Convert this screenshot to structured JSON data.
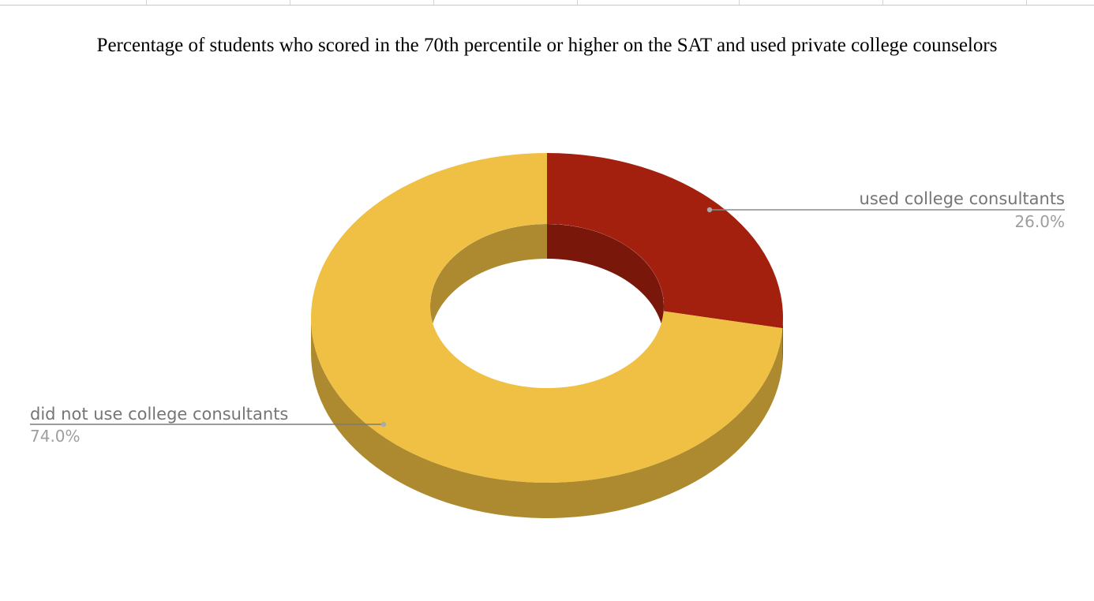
{
  "chart_data": {
    "type": "pie",
    "style": "3d-donut",
    "title": "Percentage of students who scored in the 70th percentile or higher on the SAT and used private college counselors",
    "slices": [
      {
        "label": "used college consultants",
        "value": 26.0,
        "value_label": "26.0%",
        "color": "#a31f0e",
        "side_color": "#7a170b"
      },
      {
        "label": "did not use college consultants",
        "value": 74.0,
        "value_label": "74.0%",
        "color": "#efc043",
        "side_color": "#ad8a30"
      }
    ],
    "legend": "callouts"
  }
}
